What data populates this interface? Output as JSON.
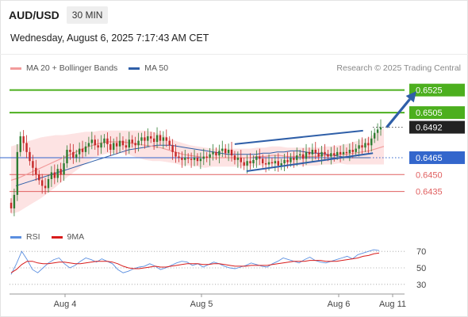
{
  "header": {
    "symbol": "AUD/USD",
    "interval": "30 MIN"
  },
  "datetime": "Wednesday, August 6, 2025 7:17:43 AM CET",
  "legend": {
    "ma20_label": "MA 20 + Bollinger Bands",
    "ma50_label": "MA 50"
  },
  "credit": "Research © 2025 Trading Central",
  "rsi_legend": {
    "rsi_label": "RSI",
    "ma_label": "9MA"
  },
  "colors": {
    "ma20": "#f29b9b",
    "ma50": "#2f5fa8",
    "bollinger_fill": "#fde3e3",
    "candle_up": "#2e7d32",
    "candle_down": "#c62828",
    "resistance": "#4caf1e",
    "support": "#e06060",
    "pivot": "#3366cc",
    "arrow": "#2f5fa8",
    "last_price": "#222222",
    "rsi": "#5b8fe0",
    "rsi_ma": "#d81b1b"
  },
  "chart_data": [
    {
      "type": "candlestick",
      "title": "AUD/USD",
      "interval": "30 MIN",
      "x_tick_labels": [
        "Aug 4",
        "Aug 5",
        "Aug 6",
        "Aug 11"
      ],
      "ylim": [
        0.6408,
        0.6536
      ],
      "levels": [
        {
          "value": 0.6525,
          "label": "0.6525",
          "kind": "resistance"
        },
        {
          "value": 0.6505,
          "label": "0.6505",
          "kind": "resistance"
        },
        {
          "value": 0.6492,
          "label": "0.6492",
          "kind": "last"
        },
        {
          "value": 0.6465,
          "label": "0.6465",
          "kind": "pivot"
        },
        {
          "value": 0.645,
          "label": "0.6450",
          "kind": "support"
        },
        {
          "value": 0.6435,
          "label": "0.6435",
          "kind": "support"
        }
      ],
      "close": [
        0.642,
        0.6432,
        0.647,
        0.6484,
        0.6478,
        0.647,
        0.6462,
        0.6456,
        0.645,
        0.6445,
        0.644,
        0.6438,
        0.6446,
        0.6452,
        0.6447,
        0.6455,
        0.645,
        0.646,
        0.6472,
        0.647,
        0.6465,
        0.6468,
        0.6473,
        0.647,
        0.6475,
        0.6478,
        0.6481,
        0.6476,
        0.6474,
        0.6478,
        0.6482,
        0.6477,
        0.6472,
        0.6478,
        0.6475,
        0.648,
        0.6476,
        0.6474,
        0.6481,
        0.6478,
        0.6476,
        0.648,
        0.6483,
        0.648,
        0.6484,
        0.6482,
        0.6479,
        0.6485,
        0.648,
        0.6483,
        0.648,
        0.6476,
        0.647,
        0.6466,
        0.6465,
        0.6463,
        0.6465,
        0.6464,
        0.6463,
        0.6465,
        0.6462,
        0.6464,
        0.6466,
        0.6465,
        0.6468,
        0.647,
        0.6467,
        0.6471,
        0.6473,
        0.6469,
        0.6472,
        0.6467,
        0.6463,
        0.6465,
        0.6461,
        0.6458,
        0.6462,
        0.646,
        0.6463,
        0.6466,
        0.6464,
        0.646,
        0.6459,
        0.6461,
        0.646,
        0.6462,
        0.6458,
        0.646,
        0.6463,
        0.6461,
        0.6465,
        0.6463,
        0.6467,
        0.6468,
        0.6464,
        0.647,
        0.6468,
        0.6472,
        0.6469,
        0.6466,
        0.647,
        0.6468,
        0.6466,
        0.6469,
        0.6467,
        0.647,
        0.6468,
        0.647,
        0.6469,
        0.6472,
        0.647,
        0.6473,
        0.6476,
        0.6474,
        0.6478,
        0.6476,
        0.6482,
        0.6487,
        0.649,
        0.6492
      ],
      "ma50": [
        0.644,
        0.6442,
        0.6444,
        0.6446,
        0.6448,
        0.645,
        0.6452,
        0.6454,
        0.6456,
        0.6458,
        0.646,
        0.6462,
        0.6464,
        0.6466,
        0.6468,
        0.647,
        0.6472,
        0.6473,
        0.6474,
        0.6475,
        0.6476,
        0.6476,
        0.6476,
        0.6475,
        0.6474,
        0.6473,
        0.6472,
        0.6471,
        0.647,
        0.6469,
        0.6468,
        0.6468,
        0.6468,
        0.6468,
        0.6468,
        0.6469,
        0.6469,
        0.647,
        0.647,
        0.6471,
        0.6471,
        0.647,
        0.6469,
        0.6469,
        0.6468,
        0.6467,
        0.6466,
        0.6465,
        0.6465,
        0.6465,
        0.6465
      ],
      "ma20": [
        0.6445,
        0.6447,
        0.645,
        0.6453,
        0.6456,
        0.6459,
        0.6462,
        0.6465,
        0.6468,
        0.6471,
        0.6474,
        0.6476,
        0.6478,
        0.6479,
        0.6479,
        0.6479,
        0.6478,
        0.6477,
        0.6476,
        0.6475,
        0.6474,
        0.6472,
        0.647,
        0.6468,
        0.6467,
        0.6466,
        0.6465,
        0.6465,
        0.6465,
        0.6465,
        0.6465,
        0.6465,
        0.6465,
        0.6466,
        0.6466,
        0.6467,
        0.6467,
        0.6466,
        0.6466,
        0.6466,
        0.6466,
        0.6466,
        0.6467,
        0.6467,
        0.6468,
        0.6468,
        0.6469,
        0.647,
        0.6471,
        0.6473,
        0.6475
      ],
      "bb_width": [
        0.003,
        0.003,
        0.0029,
        0.0028,
        0.0027,
        0.0025,
        0.0023,
        0.002,
        0.0018,
        0.0016,
        0.0014,
        0.0012,
        0.0011,
        0.001,
        0.001,
        0.001,
        0.0011,
        0.0012,
        0.0013,
        0.0013,
        0.0012,
        0.0011,
        0.001,
        0.001,
        0.0009,
        0.0009,
        0.0009,
        0.0008,
        0.0008,
        0.0008,
        0.0008,
        0.0008,
        0.0008,
        0.0008,
        0.0008,
        0.0008,
        0.0008,
        0.0008,
        0.0008,
        0.0008,
        0.0008,
        0.0008,
        0.0008,
        0.0008,
        0.0008,
        0.0009,
        0.001,
        0.0011,
        0.0012,
        0.0014,
        0.0016
      ],
      "channel": {
        "upper": [
          [
            0.57,
            0.6477
          ],
          [
            0.895,
            0.6489
          ]
        ],
        "lower": [
          [
            0.6,
            0.6453
          ],
          [
            0.92,
            0.6469
          ]
        ]
      },
      "forecast_arrow": {
        "from": [
          0.955,
          0.6492
        ],
        "to": [
          1.03,
          0.6524
        ]
      }
    },
    {
      "type": "line",
      "title": "RSI",
      "ylim": [
        25,
        75
      ],
      "y_tick_labels": [
        "70",
        "50",
        "30"
      ],
      "series": [
        {
          "name": "RSI",
          "values": [
            42,
            55,
            70,
            60,
            48,
            44,
            50,
            56,
            60,
            62,
            55,
            50,
            53,
            58,
            62,
            60,
            57,
            61,
            58,
            55,
            48,
            44,
            46,
            49,
            51,
            52,
            55,
            52,
            48,
            50,
            53,
            56,
            58,
            57,
            53,
            55,
            51,
            54,
            57,
            55,
            52,
            50,
            49,
            51,
            53,
            56,
            54,
            52,
            51,
            55,
            58,
            62,
            60,
            58,
            56,
            60,
            63,
            59,
            57,
            56,
            58,
            60,
            62,
            64,
            61,
            66,
            68,
            70,
            72,
            71
          ]
        },
        {
          "name": "9MA",
          "values": [
            44,
            48,
            54,
            58,
            58,
            56,
            55,
            55,
            56,
            57,
            57,
            56,
            55,
            55,
            56,
            57,
            58,
            58,
            58,
            57,
            55,
            52,
            50,
            49,
            49,
            50,
            51,
            52,
            51,
            51,
            52,
            53,
            54,
            55,
            55,
            55,
            54,
            54,
            55,
            55,
            54,
            53,
            52,
            52,
            52,
            53,
            53,
            53,
            53,
            54,
            55,
            56,
            57,
            58,
            58,
            58,
            59,
            59,
            59,
            58,
            58,
            58,
            59,
            60,
            61,
            62,
            64,
            65,
            67,
            68
          ]
        }
      ]
    }
  ]
}
